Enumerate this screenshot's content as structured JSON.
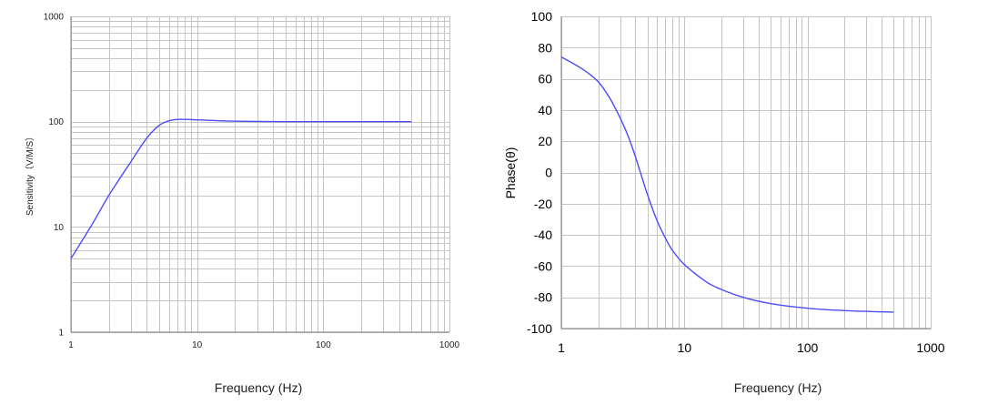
{
  "chart_data": [
    {
      "type": "line",
      "title": "",
      "xlabel": "Frequency (Hz)",
      "ylabel": "Sensitivity（V/M/S）",
      "xscale": "log",
      "yscale": "log",
      "xlim": [
        1,
        1000
      ],
      "ylim": [
        1,
        1000
      ],
      "grid": true,
      "x_ticks": [
        "1",
        "10",
        "100",
        "1000"
      ],
      "y_ticks": [
        "1",
        "10",
        "100",
        "1000"
      ],
      "series": [
        {
          "color": "#4b4bff",
          "x": [
            1,
            1.5,
            2,
            3,
            4,
            5,
            6,
            7,
            8,
            10,
            15,
            20,
            30,
            50,
            100,
            200,
            500
          ],
          "y": [
            5,
            11,
            20,
            42,
            70,
            92,
            102,
            105,
            105,
            104,
            102,
            101,
            100.5,
            100,
            100,
            100,
            100
          ]
        }
      ]
    },
    {
      "type": "line",
      "title": "",
      "xlabel": "Frequency (Hz)",
      "ylabel": "Phase(θ)",
      "xscale": "log",
      "yscale": "linear",
      "xlim": [
        1,
        1000
      ],
      "ylim": [
        -100,
        100
      ],
      "grid": true,
      "x_ticks": [
        "1",
        "10",
        "100",
        "1000"
      ],
      "y_ticks": [
        "100",
        "80",
        "60",
        "40",
        "20",
        "0",
        "-20",
        "-40",
        "-60",
        "-80",
        "-100"
      ],
      "series": [
        {
          "color": "#4b4bff",
          "x": [
            1,
            1.5,
            2,
            2.5,
            3,
            3.5,
            4,
            5,
            6,
            7,
            8,
            10,
            15,
            20,
            30,
            50,
            100,
            200,
            500
          ],
          "y": [
            74,
            66,
            58,
            47,
            35,
            23,
            10,
            -14,
            -31,
            -42,
            -50,
            -59,
            -70,
            -75,
            -80,
            -84,
            -87,
            -88.5,
            -89.5
          ]
        }
      ]
    }
  ]
}
